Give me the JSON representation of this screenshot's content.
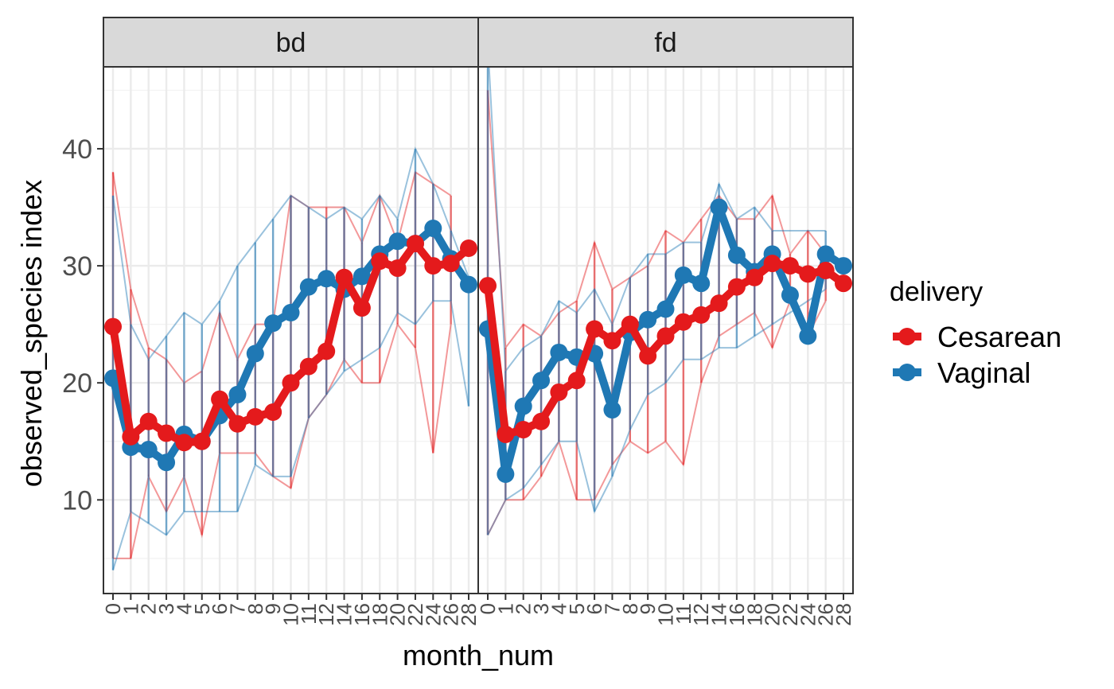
{
  "chart_data": {
    "type": "line",
    "x_categories": [
      "0",
      "1",
      "2",
      "3",
      "4",
      "5",
      "6",
      "7",
      "8",
      "9",
      "10",
      "11",
      "12",
      "14",
      "16",
      "18",
      "20",
      "22",
      "24",
      "26",
      "28"
    ],
    "xlabel": "month_num",
    "ylabel": "observed_species index",
    "ylim": [
      2,
      47
    ],
    "yticks": [
      10,
      20,
      30,
      40
    ],
    "grid": true,
    "legend": {
      "title": "delivery",
      "position": "right",
      "entries": [
        {
          "name": "Cesarean",
          "color": "#E41A1C"
        },
        {
          "name": "Vaginal",
          "color": "#1F78B4"
        }
      ]
    },
    "facets": [
      {
        "label": "bd",
        "series": [
          {
            "name": "Cesarean",
            "mean": [
              24.8,
              15.4,
              16.7,
              15.7,
              14.9,
              15.0,
              18.6,
              16.5,
              17.1,
              17.5,
              20.0,
              21.4,
              22.7,
              29.0,
              26.4,
              30.4,
              29.8,
              31.9,
              30.0,
              30.2,
              31.5
            ],
            "min": [
              5,
              5,
              12,
              9,
              12,
              7,
              14,
              14,
              14,
              12,
              11,
              17,
              19,
              22,
              20,
              20,
              25,
              23,
              14,
              25,
              null
            ],
            "max": [
              38,
              28,
              23,
              22,
              20,
              21,
              26,
              22,
              25,
              25,
              36,
              35,
              35,
              35,
              32,
              36,
              32,
              38,
              37,
              36,
              null
            ]
          },
          {
            "name": "Vaginal",
            "mean": [
              20.4,
              14.5,
              14.3,
              13.2,
              15.6,
              15.0,
              17.2,
              19.0,
              22.5,
              25.1,
              26.0,
              28.2,
              28.9,
              28.0,
              29.1,
              31.0,
              32.1,
              31.9,
              33.2,
              30.6,
              28.4
            ],
            "min": [
              4,
              9,
              8,
              7,
              9,
              9,
              9,
              9,
              13,
              12,
              12,
              17,
              19,
              21,
              22,
              23,
              26,
              25,
              27,
              27,
              18
            ],
            "max": [
              36,
              25,
              22,
              24,
              26,
              25,
              27,
              30,
              32,
              34,
              36,
              35,
              34,
              35,
              34,
              36,
              34,
              40,
              37,
              33,
              29
            ]
          }
        ]
      },
      {
        "label": "fd",
        "series": [
          {
            "name": "Cesarean",
            "mean": [
              28.3,
              15.6,
              16.0,
              16.7,
              19.2,
              20.2,
              24.6,
              23.6,
              25.0,
              22.3,
              24.0,
              25.2,
              25.8,
              26.8,
              28.2,
              29.0,
              30.2,
              30.0,
              29.3,
              29.6,
              28.5
            ],
            "min": [
              7,
              10,
              10,
              12,
              15,
              10,
              10,
              13,
              15,
              14,
              15,
              13,
              20,
              24,
              25,
              26,
              23,
              27,
              24,
              27,
              null
            ],
            "max": [
              45,
              23,
              25,
              24,
              26,
              27,
              32,
              28,
              29,
              30,
              33,
              32,
              34,
              36,
              34,
              34,
              36,
              31,
              33,
              31,
              null
            ]
          },
          {
            "name": "Vaginal",
            "mean": [
              24.6,
              12.2,
              18.0,
              20.2,
              22.6,
              22.2,
              22.5,
              17.7,
              24.3,
              25.4,
              26.3,
              29.2,
              28.5,
              35.0,
              30.9,
              29.5,
              31.0,
              27.5,
              24.0,
              31.0,
              30.0
            ],
            "min": [
              7,
              10,
              11,
              13,
              15,
              15,
              9,
              12,
              16,
              19,
              20,
              22,
              22,
              23,
              23,
              24,
              25,
              null,
              null,
              28,
              null
            ],
            "max": [
              49,
              21,
              23,
              24,
              27,
              26,
              28,
              25,
              29,
              31,
              31,
              32,
              32,
              37,
              34,
              35,
              33,
              null,
              null,
              33,
              null
            ]
          }
        ]
      }
    ]
  }
}
